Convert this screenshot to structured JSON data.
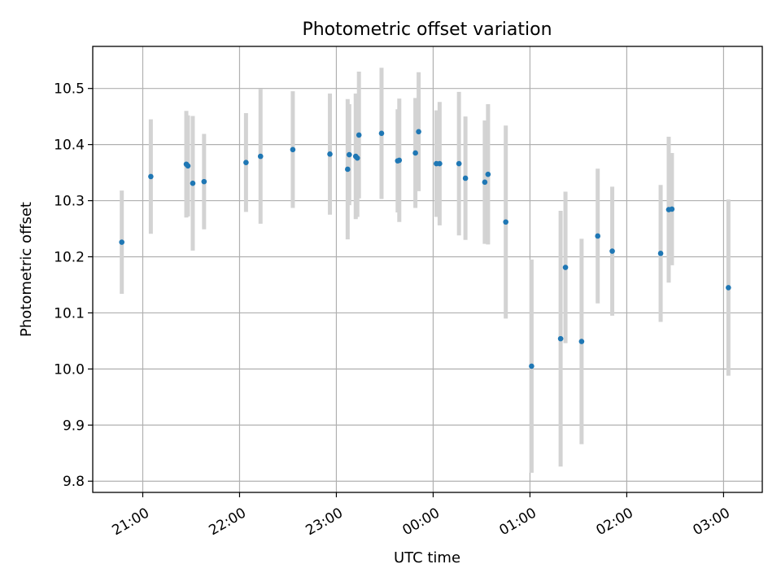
{
  "chart_data": {
    "type": "scatter",
    "title": "Photometric offset variation",
    "xlabel": "UTC time",
    "ylabel": "Photometric offset",
    "grid": true,
    "xlim": [
      "20:29",
      "03:24"
    ],
    "ylim": [
      9.78,
      10.575
    ],
    "x_ticks": [
      "21:00",
      "22:00",
      "23:00",
      "00:00",
      "01:00",
      "02:00",
      "03:00"
    ],
    "y_ticks": [
      "9.8",
      "9.9",
      "10.0",
      "10.1",
      "10.2",
      "10.3",
      "10.4",
      "10.5"
    ],
    "colors": {
      "points": "#1f77b4",
      "error_bars": "#d3d3d3",
      "grid": "#b0b0b0"
    },
    "series": [
      {
        "x": [
          "20:47",
          "21:05",
          "21:27",
          "21:28",
          "21:31",
          "21:38",
          "22:04",
          "22:13",
          "22:33",
          "22:56",
          "23:07",
          "23:08",
          "23:12",
          "23:13",
          "23:14",
          "23:28",
          "23:38",
          "23:39",
          "23:49",
          "23:51",
          "00:02",
          "00:04",
          "00:16",
          "00:20",
          "00:32",
          "00:34",
          "00:45",
          "01:01",
          "01:19",
          "01:22",
          "01:32",
          "01:42",
          "01:51",
          "02:21",
          "02:26",
          "02:28",
          "03:03"
        ],
        "y": [
          10.226,
          10.343,
          10.365,
          10.362,
          10.331,
          10.334,
          10.368,
          10.379,
          10.391,
          10.383,
          10.356,
          10.382,
          10.379,
          10.376,
          10.417,
          10.42,
          10.371,
          10.372,
          10.385,
          10.423,
          10.366,
          10.366,
          10.366,
          10.34,
          10.333,
          10.347,
          10.262,
          10.005,
          10.054,
          10.181,
          10.049,
          10.237,
          10.21,
          10.206,
          10.284,
          10.285,
          10.145
        ],
        "yerr": [
          0.092,
          0.102,
          0.095,
          0.09,
          0.12,
          0.085,
          0.088,
          0.12,
          0.104,
          0.108,
          0.125,
          0.09,
          0.112,
          0.105,
          0.113,
          0.117,
          0.092,
          0.11,
          0.098,
          0.106,
          0.095,
          0.11,
          0.128,
          0.11,
          0.11,
          0.125,
          0.172,
          0.19,
          0.228,
          0.135,
          0.183,
          0.12,
          0.115,
          0.122,
          0.13,
          0.1,
          0.157
        ]
      }
    ]
  }
}
